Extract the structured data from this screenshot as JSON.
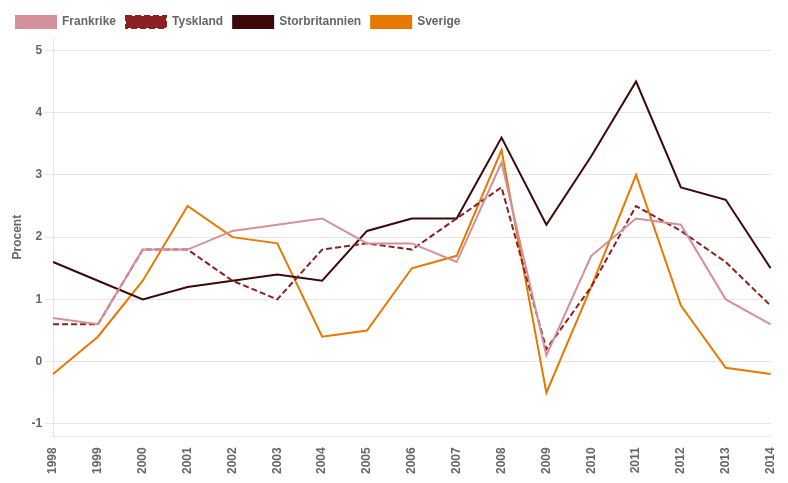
{
  "chart_data": {
    "type": "line",
    "categories": [
      "1998",
      "1999",
      "2000",
      "2001",
      "2002",
      "2003",
      "2004",
      "2005",
      "2006",
      "2007",
      "2008",
      "2009",
      "2010",
      "2011",
      "2012",
      "2013",
      "2014"
    ],
    "series": [
      {
        "name": "Frankrike",
        "color": "#D4909A",
        "line_style": "solid",
        "values": [
          0.7,
          0.6,
          1.8,
          1.8,
          2.1,
          2.2,
          2.3,
          1.9,
          1.9,
          1.6,
          3.2,
          0.1,
          1.7,
          2.3,
          2.2,
          1.0,
          0.6
        ]
      },
      {
        "name": "Tyskland",
        "color": "#8B2020",
        "line_style": "dashed",
        "values": [
          0.6,
          0.6,
          1.8,
          1.8,
          1.3,
          1.0,
          1.8,
          1.9,
          1.8,
          2.3,
          2.8,
          0.2,
          1.2,
          2.5,
          2.1,
          1.6,
          0.9
        ]
      },
      {
        "name": "Storbritannien",
        "color": "#3D0808",
        "line_style": "solid",
        "values": [
          1.6,
          1.3,
          1.0,
          1.2,
          1.3,
          1.4,
          1.3,
          2.1,
          2.3,
          2.3,
          3.6,
          2.2,
          3.3,
          4.5,
          2.8,
          2.6,
          1.5
        ]
      },
      {
        "name": "Sverige",
        "color": "#E87800",
        "line_style": "solid",
        "values": [
          -0.2,
          0.4,
          1.3,
          2.5,
          2.0,
          1.9,
          0.4,
          0.5,
          1.5,
          1.7,
          3.4,
          -0.5,
          1.2,
          3.0,
          0.9,
          -0.1,
          -0.2
        ]
      }
    ],
    "ylabel": "Procent",
    "ylim": [
      -1.2,
      5.2
    ],
    "yticks": [
      -1,
      0,
      1,
      2,
      3,
      4,
      5
    ],
    "grid": true,
    "legend": "upper left"
  }
}
